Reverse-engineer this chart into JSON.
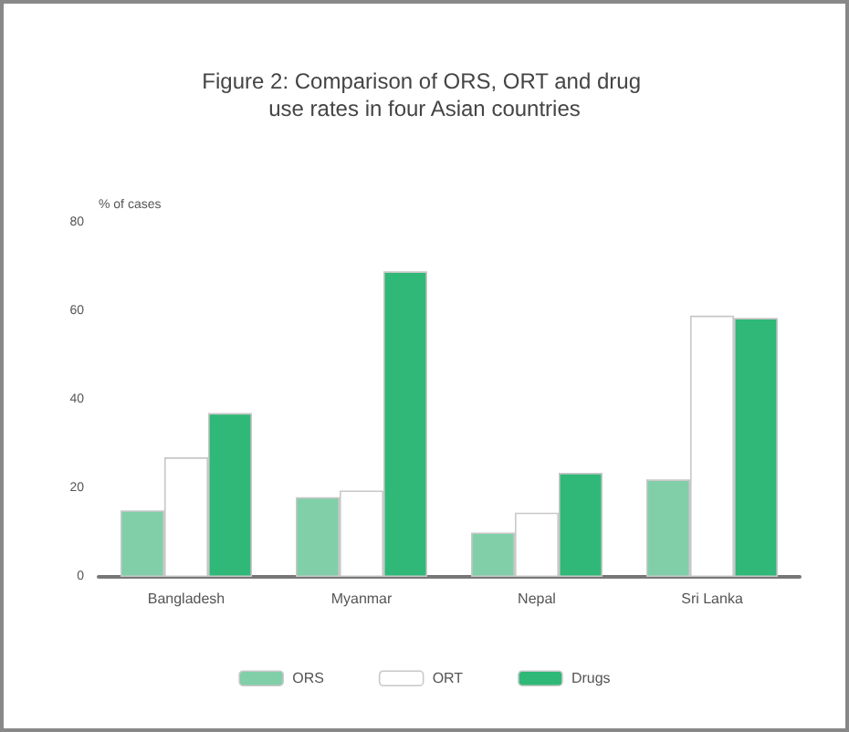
{
  "chart_data": {
    "type": "bar",
    "title": "Figure 2: Comparison of ORS, ORT and drug use rates in four Asian countries",
    "ylabel": "% of cases",
    "categories": [
      "Bangladesh",
      "Myanmar",
      "Nepal",
      "Sri Lanka"
    ],
    "series": [
      {
        "name": "ORS",
        "color": "#80cfa9",
        "values": [
          15,
          18,
          10,
          22
        ]
      },
      {
        "name": "ORT",
        "color": "#ffffff",
        "values": [
          27,
          19.5,
          14.5,
          59
        ]
      },
      {
        "name": "Drugs",
        "color": "#2fb877",
        "values": [
          37,
          69,
          23.5,
          58.5
        ]
      }
    ],
    "ylim": [
      0,
      80
    ],
    "yticks": [
      0,
      20,
      40,
      60,
      80
    ],
    "grid": false,
    "legend": "bottom"
  }
}
